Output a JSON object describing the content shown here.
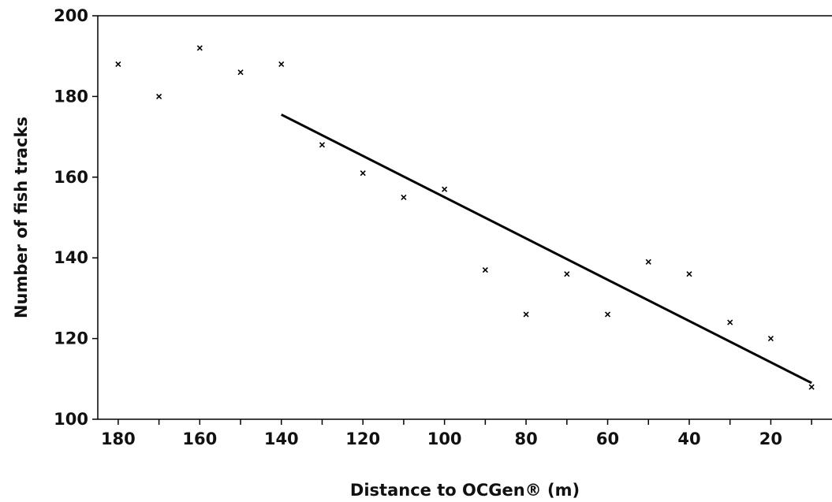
{
  "chart_data": {
    "type": "scatter",
    "title": "",
    "xlabel": "Distance to OCGen® (m)",
    "ylabel": "Number of fish tracks",
    "xlim": [
      185,
      5
    ],
    "ylim": [
      100,
      200
    ],
    "x_reversed": true,
    "grid": false,
    "x_ticks": [
      180,
      160,
      140,
      120,
      100,
      80,
      60,
      40,
      20
    ],
    "x_minor_ticks": [
      170,
      150,
      130,
      110,
      90,
      70,
      50,
      30,
      10
    ],
    "y_ticks": [
      100,
      120,
      140,
      160,
      180,
      200
    ],
    "series": [
      {
        "marker": "x",
        "x": [
          180,
          170,
          160,
          150,
          140,
          130,
          120,
          110,
          100,
          90,
          80,
          70,
          60,
          50,
          40,
          30,
          20,
          10
        ],
        "y": [
          188,
          180,
          192,
          186,
          188,
          168,
          161,
          155,
          157,
          137,
          126,
          136,
          126,
          139,
          136,
          124,
          120,
          108
        ]
      }
    ],
    "trendline": {
      "type": "linear",
      "x": [
        140,
        10
      ],
      "y": [
        175.5,
        109
      ]
    }
  }
}
